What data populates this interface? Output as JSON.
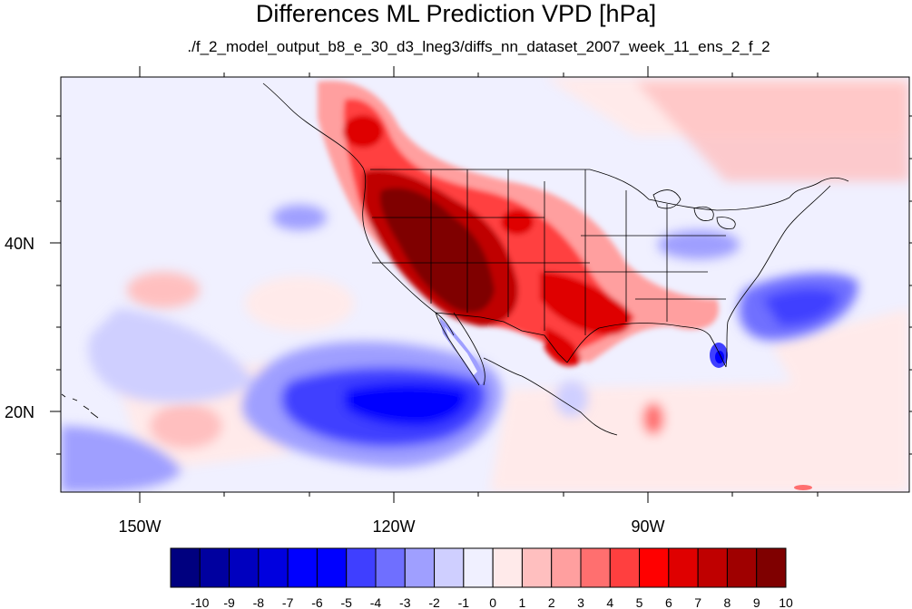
{
  "title": "Differences ML Prediction VPD [hPa]",
  "subtitle": "./f_2_model_output_b8_e_30_d3_lneg3/diffs_nn_dataset_2007_week_11_ens_2_f_2",
  "map": {
    "lon_labels": [
      "150W",
      "120W",
      "90W"
    ],
    "lat_labels": [
      "40N",
      "20N"
    ],
    "lon_range": [
      -159.2,
      -60.8
    ],
    "lat_range": [
      10.3,
      58.3
    ],
    "land_outline_color": "#000000"
  },
  "colorbar": {
    "labels": [
      "-10",
      "-9",
      "-8",
      "-7",
      "-6",
      "-5",
      "-4",
      "-3",
      "-2",
      "-1",
      "0",
      "1",
      "2",
      "3",
      "4",
      "5",
      "6",
      "7",
      "8",
      "9",
      "10"
    ],
    "colors": [
      "#00007f",
      "#00009f",
      "#0000bf",
      "#0000df",
      "#0000ff",
      "#0000ff",
      "#3f3fff",
      "#6f6fff",
      "#9f9fff",
      "#cfcfff",
      "#f0f0ff",
      "#ffeaea",
      "#ffbfbf",
      "#ff9f9f",
      "#ff6f6f",
      "#ff3f3f",
      "#ff0000",
      "#df0000",
      "#bf0000",
      "#9f0000",
      "#7f0000"
    ]
  }
}
